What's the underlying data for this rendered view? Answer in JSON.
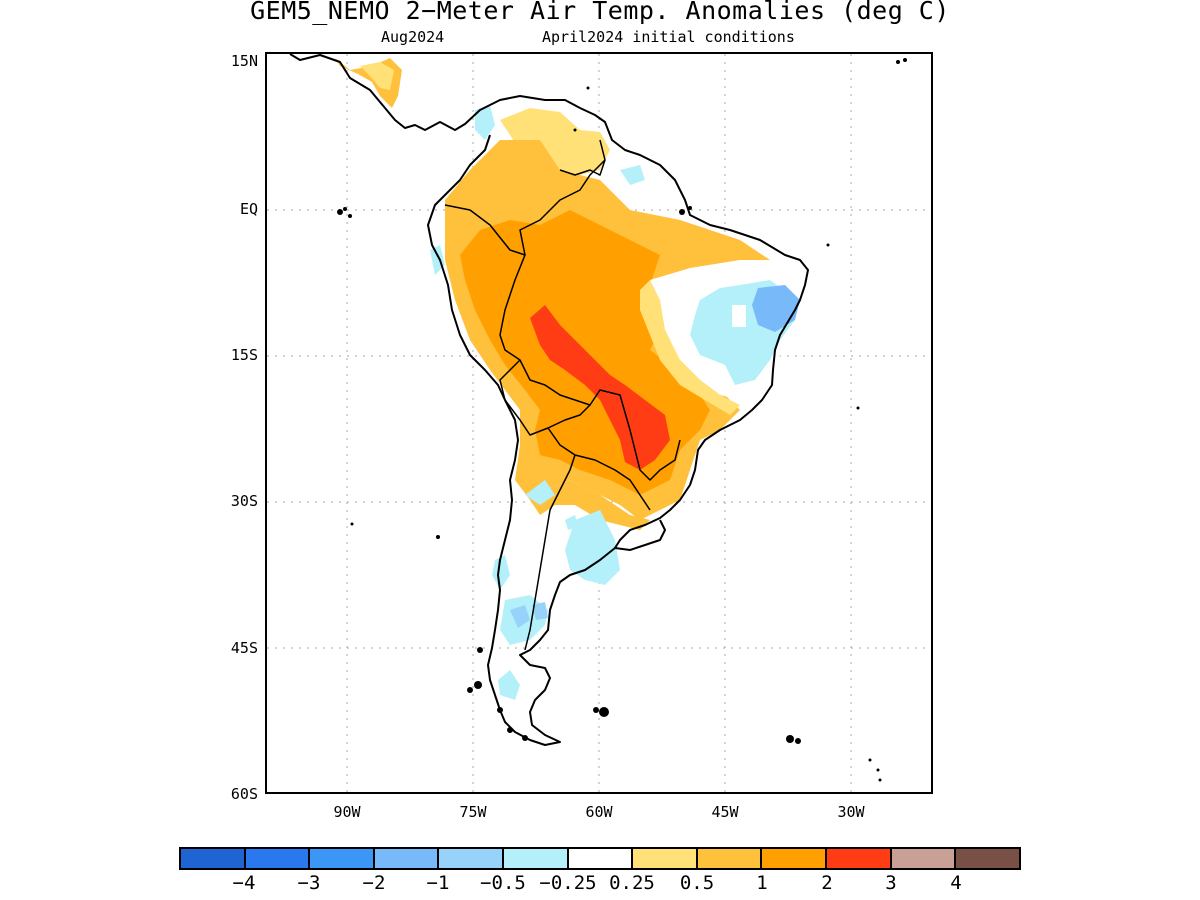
{
  "header": {
    "title": "GEM5_NEMO 2-Meter Air Temp. Anomalies (deg C)",
    "valid_month": "Aug2024",
    "init": "April2024 initial conditions"
  },
  "axes": {
    "lat_labels": [
      "15N",
      "EQ",
      "15S",
      "30S",
      "45S",
      "60S"
    ],
    "lon_labels": [
      "90W",
      "75W",
      "60W",
      "45W",
      "30W"
    ]
  },
  "legend": {
    "colors": [
      "#1e64d2",
      "#2a78f0",
      "#3c96f5",
      "#78b9fa",
      "#96d2fa",
      "#b4f0fa",
      "#ffffff",
      "#ffe178",
      "#ffc03c",
      "#ffa000",
      "#ff3c14",
      "#c8a096",
      "#785046"
    ],
    "labels": [
      "-4",
      "-3",
      "-2",
      "-1",
      "-0.5",
      "-0.25",
      "0.25",
      "0.5",
      "1",
      "2",
      "3",
      "4"
    ]
  },
  "map_colors": {
    "coast": "#000000",
    "grid": "#aaaaaa",
    "light_orange": "#ffc03c",
    "orange": "#ffa000",
    "red": "#ff3c14",
    "yellow": "#ffe178",
    "light_blue": "#b4f0fa",
    "blue": "#96d2fa",
    "mid_blue": "#78b9fa"
  }
}
